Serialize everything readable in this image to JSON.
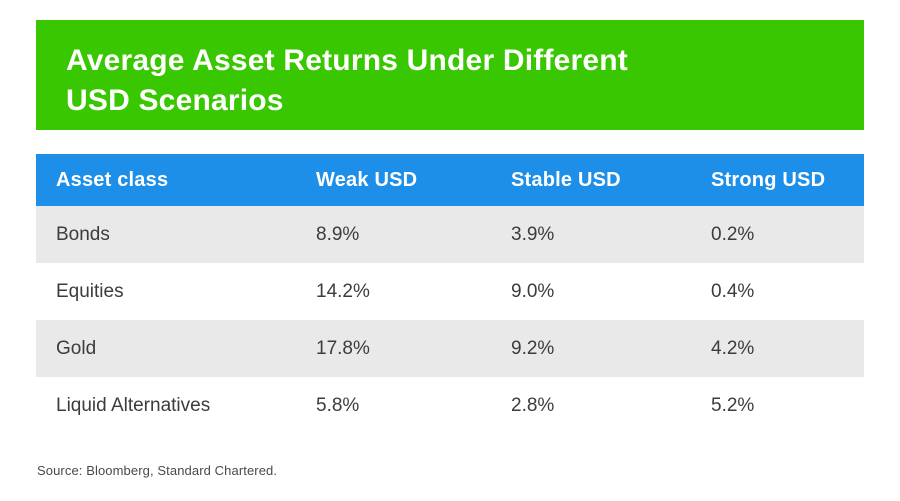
{
  "banner": {
    "title_line1": "Average Asset Returns Under Different",
    "title_line2": "USD Scenarios"
  },
  "chart_data": {
    "type": "table",
    "title": "Average Asset Returns Under Different USD Scenarios",
    "columns": [
      "Asset class",
      "Weak USD",
      "Stable USD",
      "Strong USD"
    ],
    "rows": [
      [
        "Bonds",
        "8.9%",
        "3.9%",
        "0.2%"
      ],
      [
        "Equities",
        "14.2%",
        "9.0%",
        "0.4%"
      ],
      [
        "Gold",
        "17.8%",
        "9.2%",
        "4.2%"
      ],
      [
        "Liquid Alternatives",
        "5.8%",
        "2.8%",
        "5.2%"
      ]
    ],
    "legend_position": "none",
    "grid": "alternating-row-shading"
  },
  "footer": {
    "source": "Source: Bloomberg, Standard Chartered."
  },
  "colors": {
    "banner_green": "#38C700",
    "header_blue": "#1E8FE8",
    "row_shaded": "#E9E9E9",
    "row_plain": "#FFFFFF",
    "text_dark": "#3C3C3C",
    "text_on_accent": "#FFFFFF"
  }
}
